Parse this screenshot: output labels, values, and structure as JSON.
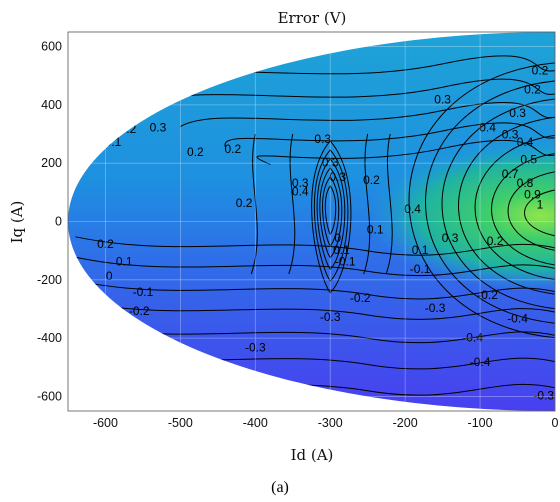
{
  "chart_data": {
    "type": "heatmap",
    "title": "Error (V)",
    "xlabel": "Id (A)",
    "ylabel": "Iq (A)",
    "caption": "(a)",
    "xlim": [
      -650,
      0
    ],
    "ylim": [
      -650,
      650
    ],
    "x_ticks": [
      -600,
      -500,
      -400,
      -300,
      -200,
      -100,
      0
    ],
    "y_ticks": [
      -600,
      -400,
      -200,
      0,
      200,
      400,
      600
    ],
    "grid": true,
    "domain_shape": "half-ellipse",
    "colormap": {
      "low": "#4a3df0",
      "mid": "#1e9ed8",
      "high": "#3fce6a"
    },
    "contour_labels": [
      {
        "text": "0.2",
        "x": -20,
        "y": 515
      },
      {
        "text": "0.2",
        "x": -30,
        "y": 450
      },
      {
        "text": "0.3",
        "x": -50,
        "y": 370
      },
      {
        "text": "0.3",
        "x": -150,
        "y": 415
      },
      {
        "text": "0.3",
        "x": -310,
        "y": 280
      },
      {
        "text": "0.3",
        "x": -300,
        "y": 200
      },
      {
        "text": "0.3",
        "x": -290,
        "y": 150
      },
      {
        "text": "0.4",
        "x": -90,
        "y": 320
      },
      {
        "text": "0.3",
        "x": -60,
        "y": 295
      },
      {
        "text": "0.4",
        "x": -40,
        "y": 270
      },
      {
        "text": "0.5",
        "x": -35,
        "y": 210
      },
      {
        "text": "0.7",
        "x": -60,
        "y": 160
      },
      {
        "text": "0.8",
        "x": -40,
        "y": 130
      },
      {
        "text": "0.9",
        "x": -30,
        "y": 90
      },
      {
        "text": "1",
        "x": -20,
        "y": 55
      },
      {
        "text": "0.1",
        "x": -590,
        "y": 270
      },
      {
        "text": "0.2",
        "x": -570,
        "y": 315
      },
      {
        "text": "0.3",
        "x": -530,
        "y": 320
      },
      {
        "text": "0.2",
        "x": -480,
        "y": 235
      },
      {
        "text": "0.2",
        "x": -430,
        "y": 245
      },
      {
        "text": "0.4",
        "x": -340,
        "y": 100
      },
      {
        "text": "0.3",
        "x": -340,
        "y": 130
      },
      {
        "text": "0.2",
        "x": -245,
        "y": 140
      },
      {
        "text": "0.2",
        "x": -415,
        "y": 60
      },
      {
        "text": "0.4",
        "x": -190,
        "y": 40
      },
      {
        "text": "0.3",
        "x": -140,
        "y": -60
      },
      {
        "text": "0.2",
        "x": -80,
        "y": -70
      },
      {
        "text": "0.1",
        "x": -180,
        "y": -100
      },
      {
        "text": "0.1",
        "x": -240,
        "y": -30
      },
      {
        "text": "-0.1",
        "x": -180,
        "y": -165
      },
      {
        "text": "-0.2",
        "x": -90,
        "y": -255
      },
      {
        "text": "-0.3",
        "x": -160,
        "y": -300
      },
      {
        "text": "-0.2",
        "x": -260,
        "y": -265
      },
      {
        "text": "-0.3",
        "x": -300,
        "y": -330
      },
      {
        "text": "-0.4",
        "x": -50,
        "y": -335
      },
      {
        "text": "-0.4",
        "x": -110,
        "y": -400
      },
      {
        "text": "-0.4",
        "x": -100,
        "y": -485
      },
      {
        "text": "-0.3",
        "x": -15,
        "y": -600
      },
      {
        "text": "-0.3",
        "x": -400,
        "y": -435
      },
      {
        "text": "0.2",
        "x": -600,
        "y": -80
      },
      {
        "text": "0.1",
        "x": -575,
        "y": -140
      },
      {
        "text": "0",
        "x": -595,
        "y": -190
      },
      {
        "text": "-0.1",
        "x": -550,
        "y": -245
      },
      {
        "text": "-0.2",
        "x": -555,
        "y": -310
      },
      {
        "text": "-0.1",
        "x": -280,
        "y": -140
      },
      {
        "text": "0.1",
        "x": -285,
        "y": -100
      },
      {
        "text": "0",
        "x": -290,
        "y": -60
      }
    ]
  }
}
